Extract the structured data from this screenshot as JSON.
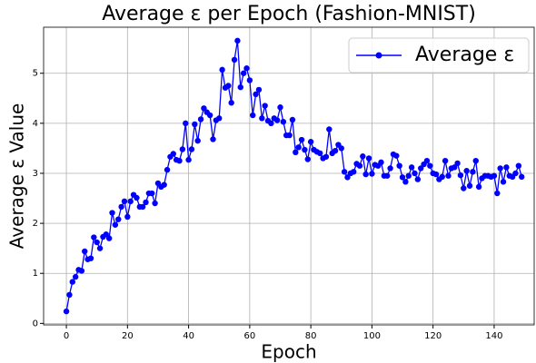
{
  "chart_data": {
    "type": "line",
    "title": "Average ε per Epoch (Fashion-MNIST)",
    "x_label": "Epoch",
    "y_label": "Average ε Value",
    "x": [
      0,
      1,
      2,
      3,
      4,
      5,
      6,
      7,
      8,
      9,
      10,
      11,
      12,
      13,
      14,
      15,
      16,
      17,
      18,
      19,
      20,
      21,
      22,
      23,
      24,
      25,
      26,
      27,
      28,
      29,
      30,
      31,
      32,
      33,
      34,
      35,
      36,
      37,
      38,
      39,
      40,
      41,
      42,
      43,
      44,
      45,
      46,
      47,
      48,
      49,
      50,
      51,
      52,
      53,
      54,
      55,
      56,
      57,
      58,
      59,
      60,
      61,
      62,
      63,
      64,
      65,
      66,
      67,
      68,
      69,
      70,
      71,
      72,
      73,
      74,
      75,
      76,
      77,
      78,
      79,
      80,
      81,
      82,
      83,
      84,
      85,
      86,
      87,
      88,
      89,
      90,
      91,
      92,
      93,
      94,
      95,
      96,
      97,
      98,
      99,
      100,
      101,
      102,
      103,
      104,
      105,
      106,
      107,
      108,
      109,
      110,
      111,
      112,
      113,
      114,
      115,
      116,
      117,
      118,
      119,
      120,
      121,
      122,
      123,
      124,
      125,
      126,
      127,
      128,
      129,
      130,
      131,
      132,
      133,
      134,
      135,
      136,
      137,
      138,
      139,
      140,
      141,
      142,
      143,
      144,
      145,
      146,
      147,
      148,
      149
    ],
    "series": [
      {
        "name": "Average ε",
        "color": "#0000ff",
        "values": [
          0.24,
          0.57,
          0.83,
          0.93,
          1.07,
          1.05,
          1.44,
          1.28,
          1.3,
          1.72,
          1.62,
          1.5,
          1.73,
          1.78,
          1.7,
          2.21,
          1.97,
          2.08,
          2.33,
          2.44,
          2.13,
          2.44,
          2.57,
          2.51,
          2.33,
          2.33,
          2.42,
          2.6,
          2.6,
          2.4,
          2.8,
          2.73,
          2.77,
          3.07,
          3.33,
          3.39,
          3.27,
          3.25,
          3.48,
          4.0,
          3.27,
          3.48,
          3.98,
          3.65,
          4.08,
          4.3,
          4.22,
          4.16,
          3.68,
          4.06,
          4.1,
          5.07,
          4.71,
          4.75,
          4.41,
          5.27,
          5.65,
          4.72,
          5.0,
          5.1,
          4.86,
          4.16,
          4.58,
          4.67,
          4.1,
          4.35,
          4.05,
          4.0,
          4.1,
          4.06,
          4.32,
          4.03,
          3.76,
          3.76,
          4.07,
          3.42,
          3.52,
          3.67,
          3.47,
          3.28,
          3.63,
          3.47,
          3.43,
          3.4,
          3.3,
          3.33,
          3.88,
          3.4,
          3.45,
          3.57,
          3.5,
          3.03,
          2.92,
          3.0,
          3.03,
          3.19,
          3.15,
          3.34,
          2.98,
          3.3,
          2.99,
          3.17,
          3.15,
          3.22,
          2.95,
          2.95,
          3.1,
          3.38,
          3.35,
          3.15,
          2.92,
          2.83,
          2.95,
          3.12,
          3.0,
          2.88,
          3.1,
          3.18,
          3.25,
          3.15,
          3.0,
          2.98,
          2.88,
          2.93,
          3.25,
          2.95,
          3.1,
          3.12,
          3.2,
          2.96,
          2.7,
          3.05,
          2.75,
          3.03,
          3.25,
          2.73,
          2.9,
          2.95,
          2.95,
          2.93,
          2.95,
          2.6,
          3.1,
          2.83,
          3.12,
          2.95,
          2.93,
          3.0,
          3.15,
          2.93
        ]
      }
    ],
    "xlim": [
      -7.45,
      153.1
    ],
    "ylim": [
      -0.03,
      5.92
    ],
    "xticks": [
      0,
      20,
      40,
      60,
      80,
      100,
      120,
      140
    ],
    "yticks": [
      0,
      1,
      2,
      3,
      4,
      5
    ],
    "grid": true,
    "legend": "upper right"
  }
}
